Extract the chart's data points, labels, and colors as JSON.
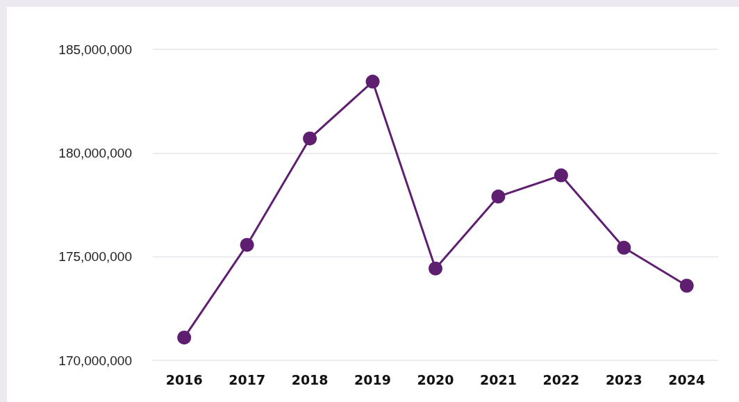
{
  "chart_data": {
    "type": "line",
    "categories": [
      "2016",
      "2017",
      "2018",
      "2019",
      "2020",
      "2021",
      "2022",
      "2023",
      "2024"
    ],
    "series": [
      {
        "color": "#5f1f70",
        "values": [
          171100000,
          175570000,
          180700000,
          183440000,
          174430000,
          177900000,
          178920000,
          175430000,
          173600000
        ]
      }
    ],
    "ylim": [
      170000000,
      185000000
    ],
    "yticks": [
      {
        "value": 170000000,
        "label": "170,000,000"
      },
      {
        "value": 175000000,
        "label": "175,000,000"
      },
      {
        "value": 180000000,
        "label": "180,000,000"
      },
      {
        "value": 185000000,
        "label": "185,000,000"
      }
    ],
    "grid": "y",
    "marker": "circle",
    "line_style": "solid"
  }
}
